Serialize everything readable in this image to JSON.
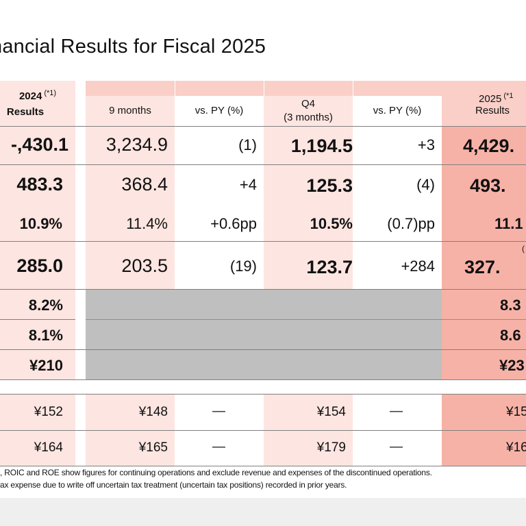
{
  "title": "nancial Results for Fiscal 2025",
  "headers": {
    "fy2024": "2024",
    "fy2024_note": "(*1)",
    "fy2024_sub": "Results",
    "nine_months": "9 months",
    "vs_py_1": "vs. PY (%)",
    "q4": "Q4",
    "q4_sub": "(3 months)",
    "vs_py_2": "vs. PY (%)",
    "fy2025": "2025",
    "fy2025_note": "(*1",
    "fy2025_sub": "Results"
  },
  "rows": [
    {
      "fy2024": "-,430.1",
      "nine": "3,234.9",
      "vs1": "(1)",
      "q4": "1,194.5",
      "vs2": "+3",
      "fy2025": "4,429."
    },
    {
      "fy2024": "483.3",
      "nine": "368.4",
      "vs1": "+4",
      "q4": "125.3",
      "vs2": "(4)",
      "fy2025": "493."
    },
    {
      "fy2024": "10.9%",
      "nine": "11.4%",
      "vs1": "+0.6pp",
      "q4": "10.5%",
      "vs2": "(0.7)pp",
      "fy2025": "11.1"
    },
    {
      "fy2024": "285.0",
      "nine": "203.5",
      "vs1": "(19)",
      "q4": "123.7",
      "vs2": "+284",
      "fy2025": "327.",
      "fy2025_note": "("
    },
    {
      "fy2024": "8.2%",
      "fy2025": "8.3"
    },
    {
      "fy2024": "8.1%",
      "fy2025": "8.6"
    },
    {
      "fy2024": "¥210",
      "fy2025": "¥23"
    },
    {
      "fy2024": "¥152",
      "nine": "¥148",
      "vs1": "—",
      "q4": "¥154",
      "vs2": "—",
      "fy2025": "¥15"
    },
    {
      "fy2024": "¥164",
      "nine": "¥165",
      "vs1": "—",
      "q4": "¥179",
      "vs2": "—",
      "fy2025": "¥16"
    }
  ],
  "footnotes": [
    ", ROIC and ROE show figures for continuing operations and exclude revenue and expenses of the discontinued operations.",
    "ax expense due to write off  uncertain tax treatment (uncertain tax positions) recorded in prior years."
  ],
  "colors": {
    "light_pink": "#fde5e1",
    "pink": "#f9cfc8",
    "dark_pink": "#f7b2a7",
    "gray_block": "#bfbfbf",
    "divider": "#7f7f7f"
  }
}
